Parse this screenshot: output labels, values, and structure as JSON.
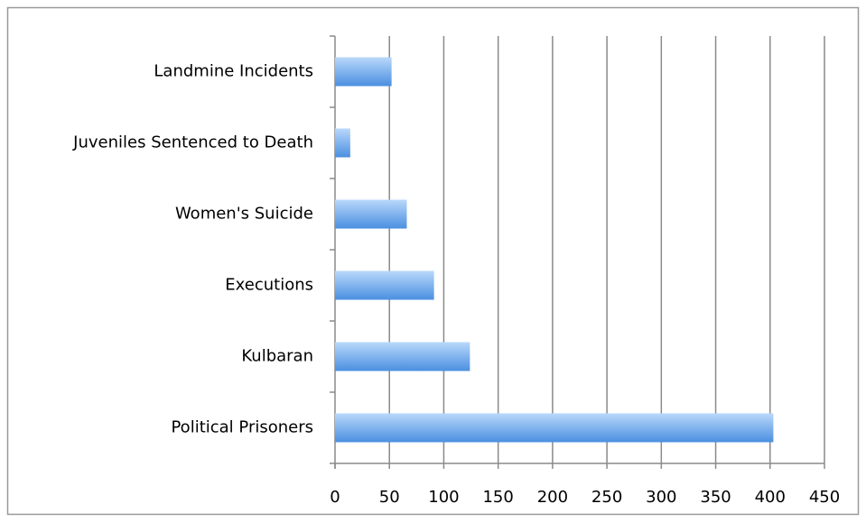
{
  "chart_data": {
    "type": "barh",
    "categories": [
      "Landmine Incidents",
      "Juveniles Sentenced to Death",
      "Women's Suicide",
      "Executions",
      "Kulbaran",
      "Political Prisoners"
    ],
    "values": [
      52,
      14,
      66,
      91,
      124,
      403
    ],
    "color": "#4a8fe0",
    "xlim": [
      0,
      450
    ],
    "xticks": [
      0,
      50,
      100,
      150,
      200,
      250,
      300,
      350,
      400,
      450
    ],
    "grid": true
  }
}
